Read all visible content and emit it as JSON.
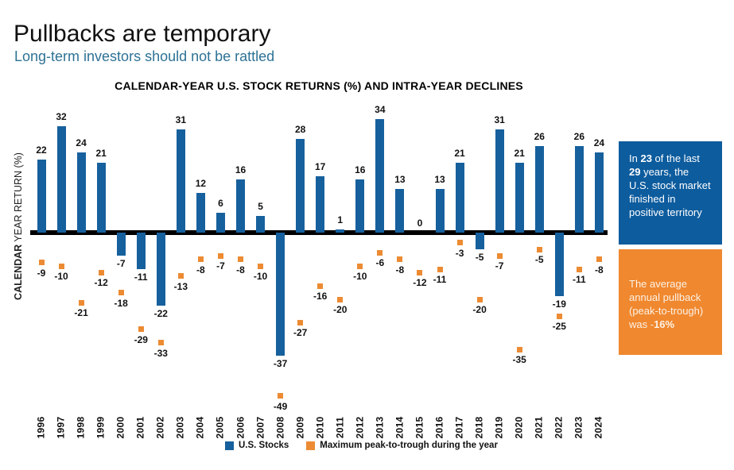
{
  "header": {
    "title": "Pullbacks are temporary",
    "subtitle": "Long-term investors should not be rattled"
  },
  "chart_data": {
    "type": "bar",
    "title": "CALENDAR-YEAR U.S. STOCK RETURNS (%) AND INTRA-YEAR DECLINES",
    "ylabel_bold": "CALENDAR",
    "ylabel_rest": " YEAR RETURN (%)",
    "categories": [
      "1996",
      "1997",
      "1998",
      "1999",
      "2000",
      "2001",
      "2002",
      "2003",
      "2004",
      "2005",
      "2006",
      "2007",
      "2008",
      "2009",
      "2010",
      "2011",
      "2012",
      "2013",
      "2014",
      "2015",
      "2016",
      "2017",
      "2018",
      "2019",
      "2020",
      "2021",
      "2022",
      "2023",
      "2024"
    ],
    "series": [
      {
        "name": "U.S. Stocks",
        "type": "bar",
        "color": "#16609d",
        "values": [
          22,
          32,
          24,
          21,
          -7,
          -11,
          -22,
          31,
          12,
          6,
          16,
          5,
          -37,
          28,
          17,
          1,
          16,
          34,
          13,
          0,
          13,
          21,
          -5,
          31,
          21,
          26,
          -19,
          26,
          24
        ]
      },
      {
        "name": "Maximum peak-to-trough during the year",
        "type": "scatter-square",
        "color": "#ec8b33",
        "values": [
          -9,
          -10,
          -21,
          -12,
          -18,
          -29,
          -33,
          -13,
          -8,
          -7,
          -8,
          -10,
          -49,
          -27,
          -16,
          -20,
          -10,
          -6,
          -8,
          -12,
          -11,
          -3,
          -20,
          -7,
          -35,
          -5,
          -25,
          -11,
          -8
        ]
      }
    ],
    "ylim": [
      -55,
      40
    ],
    "grid": false,
    "legend_position": "bottom"
  },
  "callouts": {
    "positive": {
      "pre": "In ",
      "n1": "23",
      "mid": " of the last ",
      "n2": "29",
      "post": " years, the U.S. stock market finished in positive territory",
      "bg": "#0d5c9e"
    },
    "pullback": {
      "pre": "The average annual pullback (peak-to-trough) was -",
      "bold": "16%",
      "bg": "#f0882f"
    }
  },
  "colors": {
    "subtitle": "#2e7295",
    "axis_line": "#000000",
    "bar_blue": "#16609d",
    "marker_orange": "#ec8b33"
  }
}
